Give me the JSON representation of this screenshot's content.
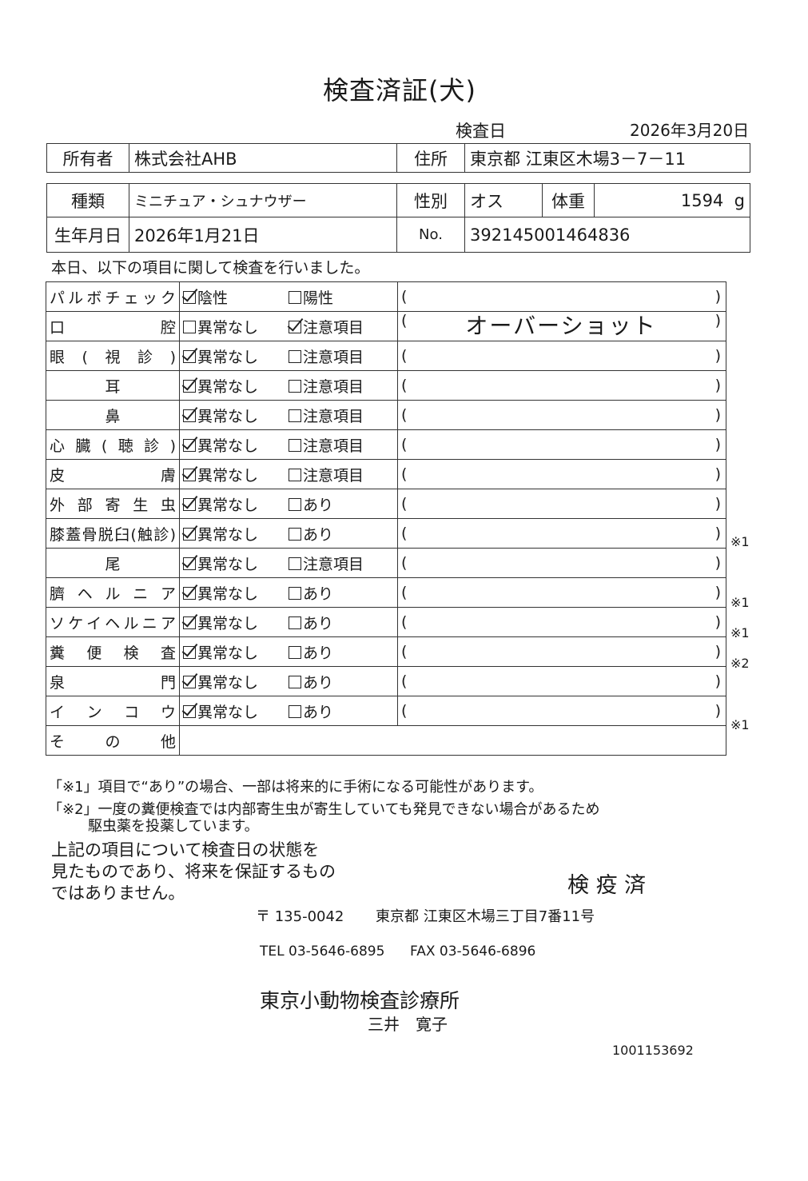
{
  "title": "検査済証(犬)",
  "inspection_date_label": "検査日",
  "inspection_date": "2026年3月20日",
  "owner": {
    "label": "所有者",
    "value": "株式会社AHB",
    "address_label": "住所",
    "address": "東京都 江東区木場3－7－11"
  },
  "animal": {
    "breed_label": "種類",
    "breed": "ミニチュア・シュナウザー",
    "sex_label": "性別",
    "sex": "オス",
    "weight_label": "体重",
    "weight": "1594",
    "weight_unit": "g",
    "birth_label": "生年月日",
    "birth": "2026年1月21日",
    "no_label": "No.",
    "no": "392145001464836"
  },
  "intro": "本日、以下の項目に関して検査を行いました。",
  "paren_open": "(",
  "paren_close": ")",
  "items": [
    {
      "label": "パルボチェック",
      "opt1": "陰性",
      "opt2": "陽性",
      "checked": 1,
      "comment": "",
      "note": ""
    },
    {
      "label": "口腔",
      "opt1": "異常なし",
      "opt2": "注意項目",
      "checked": 2,
      "comment": "オーバーショット",
      "note": ""
    },
    {
      "label": "眼(視診)",
      "opt1": "異常なし",
      "opt2": "注意項目",
      "checked": 1,
      "comment": "",
      "note": ""
    },
    {
      "label": "耳",
      "opt1": "異常なし",
      "opt2": "注意項目",
      "checked": 1,
      "comment": "",
      "note": "",
      "center": true
    },
    {
      "label": "鼻",
      "opt1": "異常なし",
      "opt2": "注意項目",
      "checked": 1,
      "comment": "",
      "note": "",
      "center": true
    },
    {
      "label": "心臓(聴診)",
      "opt1": "異常なし",
      "opt2": "注意項目",
      "checked": 1,
      "comment": "",
      "note": ""
    },
    {
      "label": "皮膚",
      "opt1": "異常なし",
      "opt2": "注意項目",
      "checked": 1,
      "comment": "",
      "note": ""
    },
    {
      "label": "外部寄生虫",
      "opt1": "異常なし",
      "opt2": "あり",
      "checked": 1,
      "comment": "",
      "note": ""
    },
    {
      "label": "膝蓋骨脱臼(触診)",
      "opt1": "異常なし",
      "opt2": "あり",
      "checked": 1,
      "comment": "",
      "note": "※1"
    },
    {
      "label": "尾",
      "opt1": "異常なし",
      "opt2": "注意項目",
      "checked": 1,
      "comment": "",
      "note": "",
      "center": true
    },
    {
      "label": "臍ヘルニア",
      "opt1": "異常なし",
      "opt2": "あり",
      "checked": 1,
      "comment": "",
      "note": "※1"
    },
    {
      "label": "ソケイヘルニア",
      "opt1": "異常なし",
      "opt2": "あり",
      "checked": 1,
      "comment": "",
      "note": "※1"
    },
    {
      "label": "糞便検査",
      "opt1": "異常なし",
      "opt2": "あり",
      "checked": 1,
      "comment": "",
      "note": "※2"
    },
    {
      "label": "泉門",
      "opt1": "異常なし",
      "opt2": "あり",
      "checked": 1,
      "comment": "",
      "note": ""
    },
    {
      "label": "インコウ",
      "opt1": "異常なし",
      "opt2": "あり",
      "checked": 1,
      "comment": "",
      "note": "※1"
    }
  ],
  "other_label": "その他",
  "footnote1": "「※1」項目で“あり”の場合、一部は将来的に手術になる可能性があります。",
  "footnote2a": "「※2」一度の糞便検査では内部寄生虫が寄生していても発見できない場合があるため",
  "footnote2b": "駆虫薬を投薬しています。",
  "disclaimer": [
    "上記の項目について検査日の状態を",
    "見たものであり、将来を保証するもの",
    "ではありません。"
  ],
  "stamp": "検 疫 済",
  "clinic": {
    "postal": "〒 135-0042",
    "address": "東京都 江東区木場三丁目7番11号",
    "tel": "TEL 03-5646-6895",
    "fax": "FAX 03-5646-6896",
    "name": "東京小動物検査診療所",
    "person": "三井　寛子"
  },
  "serial": "1001153692"
}
